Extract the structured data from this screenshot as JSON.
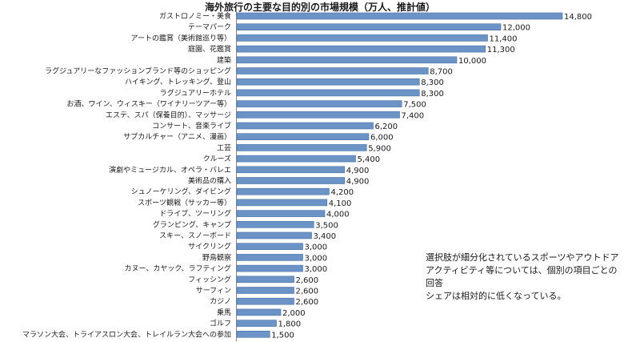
{
  "chart_data": {
    "type": "bar",
    "orientation": "horizontal",
    "title": "海外旅行の主要な目的別の市場規模（万人、推計値）",
    "categories": [
      "ガストロノミー・美食",
      "テーマパーク",
      "アートの鑑賞（美術館巡り等）",
      "庭園、花鑑賞",
      "建築",
      "ラグジュアリーなファッションブランド等のショッピング",
      "ハイキング、トレッキング、登山",
      "ラグジュアリーホテル",
      "お酒、ワイン、ウィスキー（ワイナリーツアー等）",
      "エステ、スパ（保養目的）、マッサージ",
      "コンサート、音楽ライブ",
      "サブカルチャー（アニメ、漫画）",
      "工芸",
      "クルーズ",
      "演劇やミュージカル、オペラ・バレエ",
      "美術品の購入",
      "シュノーケリング、ダイビング",
      "スポーツ観戦（サッカー等）",
      "ドライブ、ツーリング",
      "グランピング、キャンプ",
      "スキー、スノーボード",
      "サイクリング",
      "野鳥観察",
      "カヌー、カヤック、ラフティング",
      "フィッシング",
      "サーフィン",
      "カジノ",
      "乗馬",
      "ゴルフ",
      "マラソン大会、トライアスロン大会、トレイルラン大会への参加"
    ],
    "values": [
      14800,
      12000,
      11400,
      11300,
      10000,
      8700,
      8300,
      8300,
      7500,
      7400,
      6200,
      6000,
      5900,
      5400,
      4900,
      4900,
      4200,
      4100,
      4000,
      3500,
      3400,
      3000,
      3000,
      3000,
      2600,
      2600,
      2600,
      2000,
      1800,
      1500
    ],
    "value_labels": [
      "14,800",
      "12,000",
      "11,400",
      "11,300",
      "10,000",
      "8,700",
      "8,300",
      "8,300",
      "7,500",
      "7,400",
      "6,200",
      "6,000",
      "5,900",
      "5,400",
      "4,900",
      "4,900",
      "4,200",
      "4,100",
      "4,000",
      "3,500",
      "3,400",
      "3,000",
      "3,000",
      "3,000",
      "2,600",
      "2,600",
      "2,600",
      "2,000",
      "1,800",
      "1,500"
    ],
    "xlim": [
      0,
      14800
    ],
    "grid": false,
    "bar_color": "#6b93c6",
    "bar_border_color": "#4a72a8"
  },
  "note": {
    "lines": [
      "選択肢が細分化されているスポーツやアウトドア",
      "アクティビティ等については、個別の項目ごとの回答",
      "シェアは相対的に低くなっている。"
    ]
  }
}
